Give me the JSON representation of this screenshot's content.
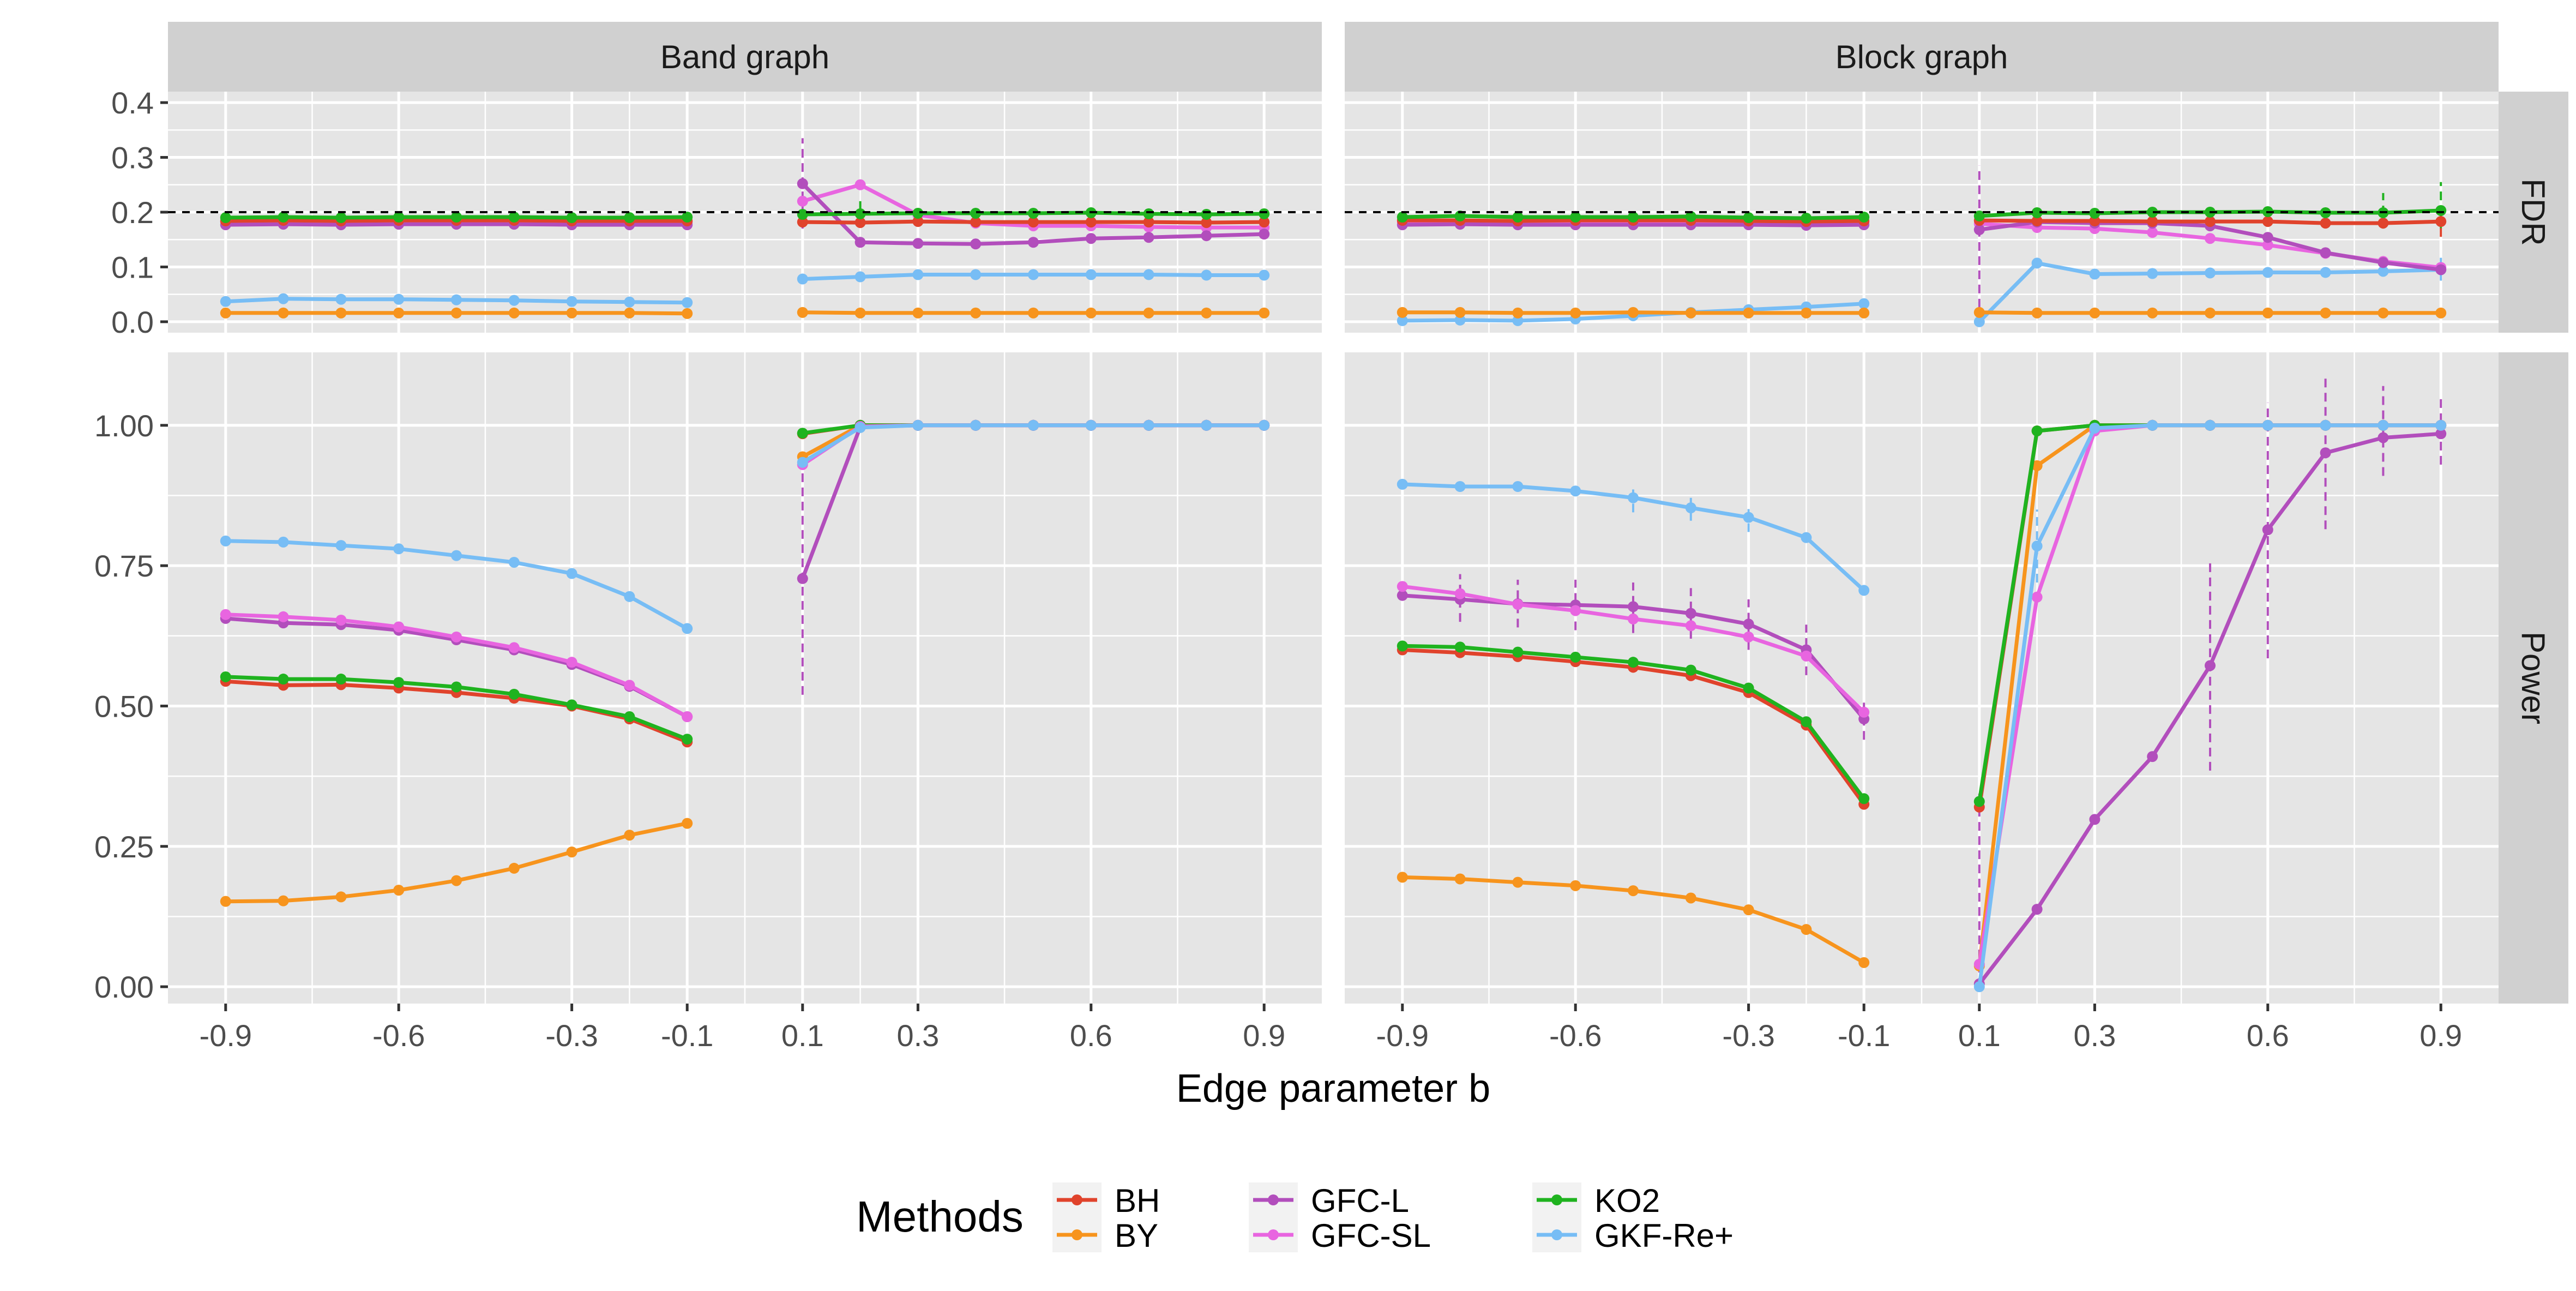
{
  "colors": {
    "BH": "#e0432c",
    "BY": "#f7941d",
    "GFC-L": "#b24ebc",
    "GFC-SL": "#e865e0",
    "KO2": "#1fb31f",
    "GKF-Re+": "#77bdf5",
    "panel_bg": "#e5e5e5",
    "strip_bg": "#d0d0d0",
    "grid": "#ffffff"
  },
  "chart_data": {
    "type": "line",
    "facet_columns": [
      "Band graph",
      "Block graph"
    ],
    "facet_rows": [
      "FDR",
      "Power"
    ],
    "xlabel": "Edge parameter b",
    "x_ticks": [
      "-0.9",
      "-0.6",
      "-0.3",
      "-0.1",
      "0.1",
      "0.3",
      "0.6",
      "0.9"
    ],
    "x": [
      -0.9,
      -0.8,
      -0.7,
      -0.6,
      -0.5,
      -0.4,
      -0.3,
      -0.2,
      -0.1,
      0.1,
      0.2,
      0.3,
      0.4,
      0.5,
      0.6,
      0.7,
      0.8,
      0.9
    ],
    "fdr_ticks": [
      "0.0",
      "0.1",
      "0.2",
      "0.3",
      "0.4"
    ],
    "fdr_ylim": [
      -0.02,
      0.42
    ],
    "power_ticks": [
      "0.00",
      "0.25",
      "0.50",
      "0.75",
      "1.00"
    ],
    "power_ylim": [
      -0.03,
      1.13
    ],
    "reference_line": {
      "row": "FDR",
      "y": 0.2,
      "style": "dashed"
    },
    "legend": {
      "title": "Methods",
      "position": "bottom",
      "entries": [
        "BH",
        "BY",
        "GFC-L",
        "GFC-SL",
        "KO2",
        "GKF-Re+"
      ]
    },
    "panels": [
      {
        "column": "Band graph",
        "row": "FDR",
        "series": [
          {
            "name": "GKF-Re+",
            "values": [
              0.037,
              0.042,
              0.041,
              0.041,
              0.04,
              0.039,
              0.037,
              0.036,
              0.035,
              0.078,
              0.082,
              0.086,
              0.086,
              0.086,
              0.086,
              0.086,
              0.085,
              0.085
            ]
          },
          {
            "name": "BY",
            "values": [
              0.016,
              0.016,
              0.016,
              0.016,
              0.016,
              0.016,
              0.016,
              0.016,
              0.015,
              0.017,
              0.016,
              0.016,
              0.016,
              0.016,
              0.016,
              0.016,
              0.016,
              0.016
            ]
          },
          {
            "name": "GFC-SL",
            "values": [
              0.182,
              0.182,
              0.181,
              0.182,
              0.182,
              0.182,
              0.181,
              0.181,
              0.181,
              0.22,
              0.25,
              0.195,
              0.18,
              0.175,
              0.175,
              0.173,
              0.172,
              0.172
            ]
          },
          {
            "name": "GFC-L",
            "values": [
              0.177,
              0.178,
              0.177,
              0.178,
              0.178,
              0.178,
              0.177,
              0.177,
              0.177,
              0.252,
              0.145,
              0.143,
              0.142,
              0.145,
              0.152,
              0.154,
              0.157,
              0.16
            ]
          },
          {
            "name": "BH",
            "values": [
              0.184,
              0.185,
              0.184,
              0.185,
              0.185,
              0.185,
              0.184,
              0.184,
              0.184,
              0.182,
              0.181,
              0.183,
              0.182,
              0.182,
              0.182,
              0.182,
              0.181,
              0.182
            ]
          },
          {
            "name": "KO2",
            "values": [
              0.19,
              0.191,
              0.19,
              0.191,
              0.191,
              0.191,
              0.19,
              0.19,
              0.191,
              0.196,
              0.197,
              0.198,
              0.198,
              0.198,
              0.199,
              0.197,
              0.196,
              0.197
            ]
          }
        ],
        "error_bars": [
          {
            "series": "GFC-L",
            "x": 0.1,
            "low": 0.17,
            "high": 0.335
          },
          {
            "series": "KO2",
            "x": 0.2,
            "low": 0.18,
            "high": 0.22
          }
        ]
      },
      {
        "column": "Block graph",
        "row": "FDR",
        "series": [
          {
            "name": "GKF-Re+",
            "values": [
              0.002,
              0.003,
              0.002,
              0.005,
              0.011,
              0.017,
              0.022,
              0.027,
              0.033,
              0.0,
              0.107,
              0.087,
              0.088,
              0.089,
              0.09,
              0.09,
              0.092,
              0.095
            ]
          },
          {
            "name": "BY",
            "values": [
              0.017,
              0.017,
              0.016,
              0.016,
              0.017,
              0.016,
              0.016,
              0.016,
              0.016,
              0.017,
              0.016,
              0.016,
              0.016,
              0.016,
              0.016,
              0.016,
              0.016,
              0.016
            ]
          },
          {
            "name": "GFC-SL",
            "values": [
              0.182,
              0.183,
              0.182,
              0.182,
              0.182,
              0.183,
              0.181,
              0.181,
              0.181,
              0.179,
              0.172,
              0.17,
              0.163,
              0.152,
              0.14,
              0.125,
              0.11,
              0.099
            ]
          },
          {
            "name": "GFC-L",
            "values": [
              0.177,
              0.178,
              0.177,
              0.177,
              0.177,
              0.177,
              0.177,
              0.176,
              0.177,
              0.168,
              0.182,
              0.18,
              0.18,
              0.175,
              0.154,
              0.126,
              0.108,
              0.095
            ]
          },
          {
            "name": "BH",
            "values": [
              0.185,
              0.185,
              0.184,
              0.185,
              0.185,
              0.185,
              0.184,
              0.183,
              0.184,
              0.185,
              0.184,
              0.184,
              0.183,
              0.183,
              0.183,
              0.18,
              0.18,
              0.183
            ]
          },
          {
            "name": "KO2",
            "values": [
              0.191,
              0.193,
              0.191,
              0.191,
              0.191,
              0.192,
              0.19,
              0.189,
              0.191,
              0.193,
              0.199,
              0.198,
              0.2,
              0.2,
              0.201,
              0.199,
              0.199,
              0.203
            ]
          }
        ],
        "error_bars": [
          {
            "series": "GFC-L",
            "x": 0.1,
            "low": 0.0,
            "high": 0.285
          },
          {
            "series": "GKF-Re+",
            "x": 0.9,
            "low": 0.075,
            "high": 0.12
          },
          {
            "series": "KO2",
            "x": 0.8,
            "low": 0.17,
            "high": 0.235
          },
          {
            "series": "KO2",
            "x": 0.9,
            "low": 0.17,
            "high": 0.255
          },
          {
            "series": "BH",
            "x": 0.9,
            "low": 0.155,
            "high": 0.205
          }
        ]
      },
      {
        "column": "Band graph",
        "row": "Power",
        "series": [
          {
            "name": "BY",
            "values": [
              0.152,
              0.153,
              0.16,
              0.172,
              0.189,
              0.211,
              0.24,
              0.27,
              0.291,
              0.944,
              1.0,
              1.0,
              1.0,
              1.0,
              1.0,
              1.0,
              1.0,
              1.0
            ]
          },
          {
            "name": "BH",
            "values": [
              0.544,
              0.537,
              0.538,
              0.532,
              0.524,
              0.514,
              0.5,
              0.477,
              0.436,
              0.985,
              1.0,
              1.0,
              1.0,
              1.0,
              1.0,
              1.0,
              1.0,
              1.0
            ]
          },
          {
            "name": "KO2",
            "values": [
              0.552,
              0.548,
              0.548,
              0.542,
              0.534,
              0.521,
              0.502,
              0.481,
              0.441,
              0.986,
              1.0,
              1.0,
              1.0,
              1.0,
              1.0,
              1.0,
              1.0,
              1.0
            ]
          },
          {
            "name": "GFC-L",
            "values": [
              0.656,
              0.648,
              0.645,
              0.635,
              0.618,
              0.6,
              0.574,
              0.535,
              0.481,
              0.727,
              0.997,
              1.0,
              1.0,
              1.0,
              1.0,
              1.0,
              1.0,
              1.0
            ]
          },
          {
            "name": "GFC-SL",
            "values": [
              0.663,
              0.659,
              0.653,
              0.641,
              0.623,
              0.604,
              0.578,
              0.537,
              0.481,
              0.93,
              0.998,
              1.0,
              1.0,
              1.0,
              1.0,
              1.0,
              1.0,
              1.0
            ]
          },
          {
            "name": "GKF-Re+",
            "values": [
              0.794,
              0.792,
              0.786,
              0.78,
              0.768,
              0.756,
              0.736,
              0.695,
              0.638,
              0.934,
              0.996,
              1.0,
              1.0,
              1.0,
              1.0,
              1.0,
              1.0,
              1.0
            ]
          }
        ],
        "error_bars": [
          {
            "series": "GFC-L",
            "x": 0.1,
            "low": 0.52,
            "high": 0.93
          }
        ]
      },
      {
        "column": "Block graph",
        "row": "Power",
        "series": [
          {
            "name": "BY",
            "values": [
              0.195,
              0.192,
              0.186,
              0.18,
              0.171,
              0.158,
              0.137,
              0.102,
              0.043,
              0.037,
              0.928,
              1.0,
              1.0,
              1.0,
              1.0,
              1.0,
              1.0,
              1.0
            ]
          },
          {
            "name": "BH",
            "values": [
              0.6,
              0.595,
              0.588,
              0.579,
              0.569,
              0.554,
              0.524,
              0.466,
              0.325,
              0.32,
              0.99,
              1.0,
              1.0,
              1.0,
              1.0,
              1.0,
              1.0,
              1.0
            ]
          },
          {
            "name": "KO2",
            "values": [
              0.607,
              0.605,
              0.596,
              0.587,
              0.578,
              0.564,
              0.532,
              0.472,
              0.335,
              0.33,
              0.99,
              1.0,
              1.0,
              1.0,
              1.0,
              1.0,
              1.0,
              1.0
            ]
          },
          {
            "name": "GFC-L",
            "values": [
              0.697,
              0.69,
              0.682,
              0.68,
              0.677,
              0.665,
              0.646,
              0.6,
              0.477,
              0.005,
              0.138,
              0.298,
              0.41,
              0.572,
              0.814,
              0.951,
              0.978,
              0.985
            ]
          },
          {
            "name": "GFC-SL",
            "values": [
              0.713,
              0.7,
              0.681,
              0.67,
              0.655,
              0.643,
              0.623,
              0.589,
              0.489,
              0.04,
              0.694,
              0.99,
              1.0,
              1.0,
              1.0,
              1.0,
              1.0,
              1.0
            ]
          },
          {
            "name": "GKF-Re+",
            "values": [
              0.895,
              0.891,
              0.891,
              0.883,
              0.871,
              0.853,
              0.836,
              0.8,
              0.706,
              0.0,
              0.785,
              0.995,
              1.0,
              1.0,
              1.0,
              1.0,
              1.0,
              1.0
            ]
          }
        ],
        "error_bars": [
          {
            "series": "GFC-L",
            "x": -0.8,
            "low": 0.65,
            "high": 0.735
          },
          {
            "series": "GFC-L",
            "x": -0.7,
            "low": 0.64,
            "high": 0.725
          },
          {
            "series": "GFC-L",
            "x": -0.6,
            "low": 0.635,
            "high": 0.725
          },
          {
            "series": "GFC-L",
            "x": -0.5,
            "low": 0.63,
            "high": 0.72
          },
          {
            "series": "GFC-L",
            "x": -0.4,
            "low": 0.62,
            "high": 0.71
          },
          {
            "series": "GFC-L",
            "x": -0.3,
            "low": 0.6,
            "high": 0.69
          },
          {
            "series": "GFC-L",
            "x": -0.2,
            "low": 0.555,
            "high": 0.645
          },
          {
            "series": "GFC-L",
            "x": -0.1,
            "low": 0.44,
            "high": 0.515
          },
          {
            "series": "GFC-L",
            "x": 0.1,
            "low": 0.0,
            "high": 0.35
          },
          {
            "series": "GFC-L",
            "x": 0.5,
            "low": 0.385,
            "high": 0.76
          },
          {
            "series": "GFC-L",
            "x": 0.6,
            "low": 0.585,
            "high": 1.04
          },
          {
            "series": "GFC-L",
            "x": 0.7,
            "low": 0.815,
            "high": 1.09
          },
          {
            "series": "GFC-L",
            "x": 0.8,
            "low": 0.91,
            "high": 1.07
          },
          {
            "series": "GFC-L",
            "x": 0.9,
            "low": 0.93,
            "high": 1.05
          },
          {
            "series": "GKF-Re+",
            "x": 0.2,
            "low": 0.72,
            "high": 0.85
          },
          {
            "series": "GKF-Re+",
            "x": -0.5,
            "low": 0.845,
            "high": 0.895
          },
          {
            "series": "GKF-Re+",
            "x": -0.4,
            "low": 0.83,
            "high": 0.88
          },
          {
            "series": "GKF-Re+",
            "x": -0.3,
            "low": 0.81,
            "high": 0.86
          }
        ]
      }
    ]
  }
}
